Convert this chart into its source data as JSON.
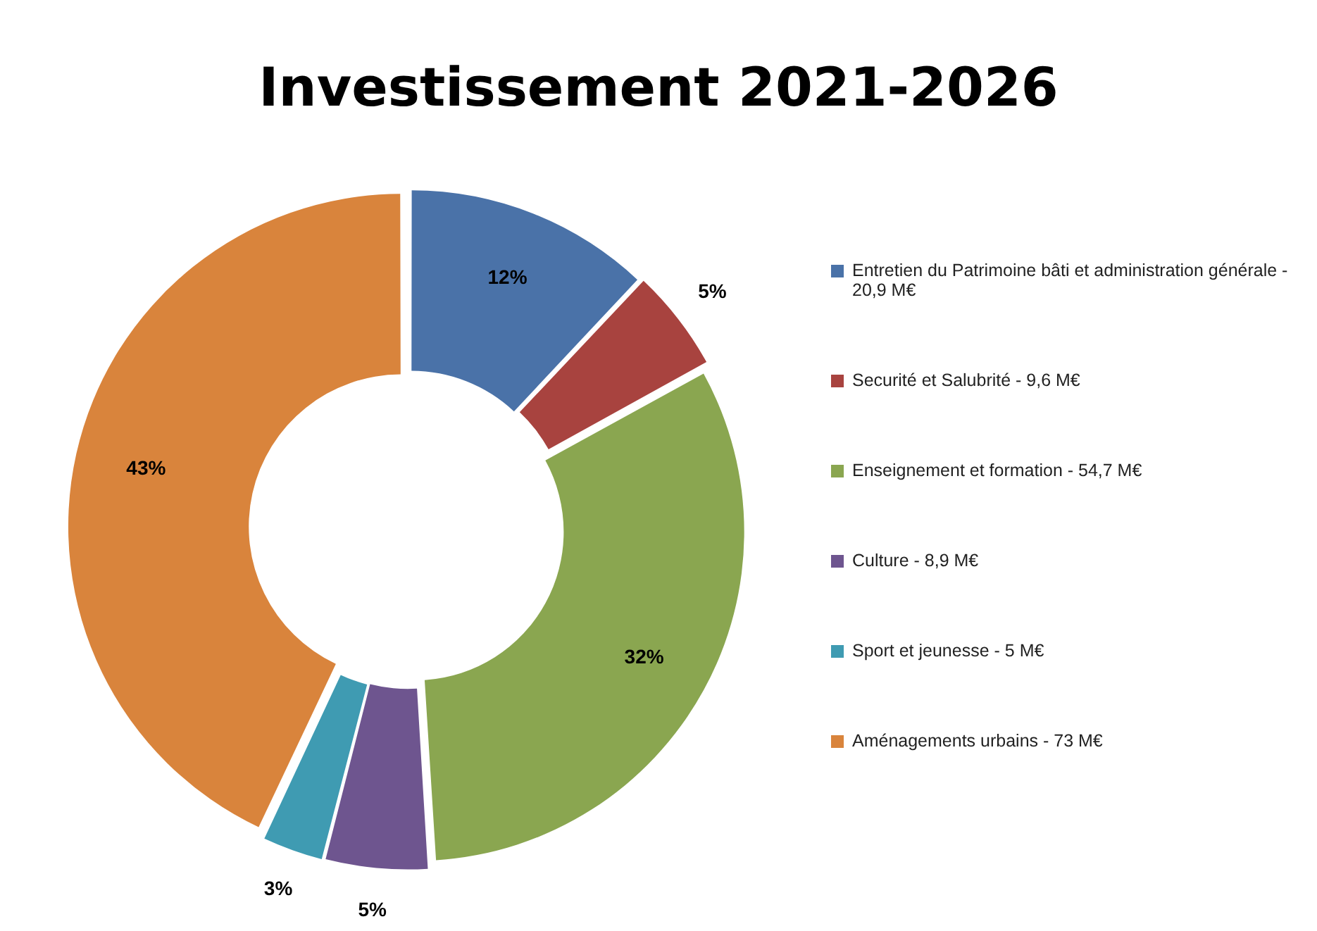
{
  "chart_data": {
    "type": "donut",
    "title": "Investissement 2021-2026",
    "categories": [
      "Entretien du Patrimoine bâti et administration générale - 20,9 M€",
      "Securité et Salubrité - 9,6 M€",
      "Enseignement et formation - 54,7 M€",
      "Culture - 8,9 M€",
      "Sport et jeunesse - 5 M€",
      "Aménagements urbains - 73 M€"
    ],
    "values": [
      12,
      5,
      32,
      5,
      3,
      43
    ],
    "colors": [
      "#4a72a8",
      "#a8433f",
      "#8aa650",
      "#6e558f",
      "#3f9bb2",
      "#d9843c"
    ],
    "value_labels": [
      "12%",
      "5%",
      "32%",
      "5%",
      "3%",
      "43%"
    ],
    "legend": "right"
  }
}
